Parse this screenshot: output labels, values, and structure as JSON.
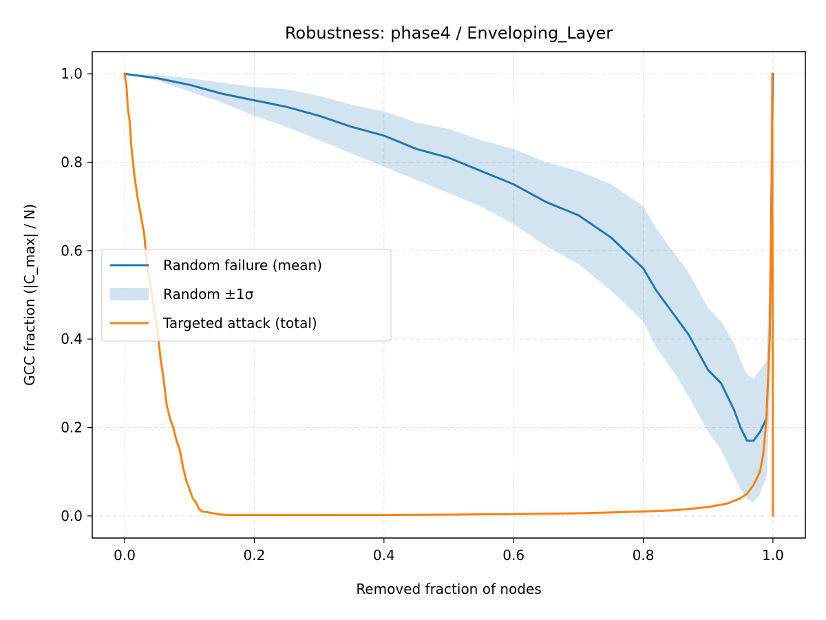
{
  "chart_data": {
    "type": "line",
    "title": "Robustness: phase4 / Enveloping_Layer",
    "xlabel": "Removed fraction of nodes",
    "ylabel": "GCC fraction (|C_max| / N)",
    "xlim": [
      -0.05,
      1.05
    ],
    "ylim": [
      -0.05,
      1.05
    ],
    "xticks": [
      "0.0",
      "0.2",
      "0.4",
      "0.6",
      "0.8",
      "1.0"
    ],
    "yticks": [
      "0.0",
      "0.2",
      "0.4",
      "0.6",
      "0.8",
      "1.0"
    ],
    "grid": true,
    "legend_position": "center-left",
    "series": [
      {
        "name": "Random failure (mean)",
        "kind": "line",
        "color": "#1f77b4",
        "x": [
          0.0,
          0.05,
          0.1,
          0.15,
          0.2,
          0.25,
          0.3,
          0.35,
          0.4,
          0.45,
          0.5,
          0.55,
          0.6,
          0.65,
          0.7,
          0.75,
          0.8,
          0.82,
          0.85,
          0.87,
          0.9,
          0.92,
          0.94,
          0.95,
          0.96,
          0.97,
          0.98,
          0.99,
          0.995,
          1.0
        ],
        "y": [
          1.0,
          0.99,
          0.975,
          0.955,
          0.94,
          0.925,
          0.905,
          0.88,
          0.86,
          0.83,
          0.81,
          0.78,
          0.75,
          0.71,
          0.68,
          0.63,
          0.56,
          0.51,
          0.45,
          0.41,
          0.33,
          0.3,
          0.24,
          0.2,
          0.17,
          0.17,
          0.19,
          0.22,
          0.4,
          1.0
        ]
      },
      {
        "name": "Random ±1σ",
        "kind": "band",
        "color": "#1f77b4",
        "opacity": 0.2,
        "x": [
          0.0,
          0.05,
          0.1,
          0.15,
          0.2,
          0.25,
          0.3,
          0.35,
          0.4,
          0.45,
          0.5,
          0.55,
          0.6,
          0.65,
          0.7,
          0.75,
          0.8,
          0.82,
          0.85,
          0.87,
          0.9,
          0.92,
          0.94,
          0.95,
          0.96,
          0.97,
          0.98,
          0.99,
          0.995,
          1.0
        ],
        "lower": [
          1.0,
          0.985,
          0.96,
          0.935,
          0.905,
          0.88,
          0.85,
          0.82,
          0.79,
          0.76,
          0.73,
          0.7,
          0.66,
          0.61,
          0.57,
          0.51,
          0.44,
          0.38,
          0.32,
          0.27,
          0.19,
          0.15,
          0.09,
          0.06,
          0.04,
          0.03,
          0.05,
          0.09,
          0.25,
          1.0
        ],
        "upper": [
          1.0,
          0.997,
          0.99,
          0.98,
          0.97,
          0.965,
          0.95,
          0.93,
          0.915,
          0.89,
          0.875,
          0.85,
          0.83,
          0.8,
          0.78,
          0.75,
          0.7,
          0.65,
          0.59,
          0.55,
          0.47,
          0.44,
          0.39,
          0.35,
          0.32,
          0.31,
          0.33,
          0.35,
          0.55,
          1.0
        ]
      },
      {
        "name": "Targeted attack (total)",
        "kind": "line",
        "color": "#ff7f0e",
        "x": [
          0.0,
          0.003,
          0.005,
          0.008,
          0.01,
          0.015,
          0.02,
          0.025,
          0.03,
          0.035,
          0.04,
          0.045,
          0.05,
          0.055,
          0.06,
          0.065,
          0.07,
          0.075,
          0.08,
          0.085,
          0.09,
          0.095,
          0.1,
          0.105,
          0.11,
          0.115,
          0.12,
          0.13,
          0.14,
          0.15,
          0.16,
          0.2,
          0.3,
          0.4,
          0.5,
          0.6,
          0.7,
          0.8,
          0.85,
          0.9,
          0.93,
          0.95,
          0.96,
          0.97,
          0.98,
          0.985,
          0.99,
          0.995,
          0.998,
          0.999,
          1.0
        ],
        "y": [
          1.0,
          0.97,
          0.92,
          0.89,
          0.84,
          0.77,
          0.72,
          0.68,
          0.64,
          0.56,
          0.52,
          0.47,
          0.43,
          0.36,
          0.31,
          0.25,
          0.22,
          0.2,
          0.17,
          0.15,
          0.11,
          0.08,
          0.06,
          0.04,
          0.03,
          0.015,
          0.01,
          0.008,
          0.005,
          0.003,
          0.002,
          0.002,
          0.002,
          0.002,
          0.003,
          0.004,
          0.006,
          0.01,
          0.013,
          0.02,
          0.028,
          0.04,
          0.05,
          0.07,
          0.1,
          0.14,
          0.22,
          0.4,
          0.7,
          1.0,
          0.0
        ]
      }
    ]
  }
}
